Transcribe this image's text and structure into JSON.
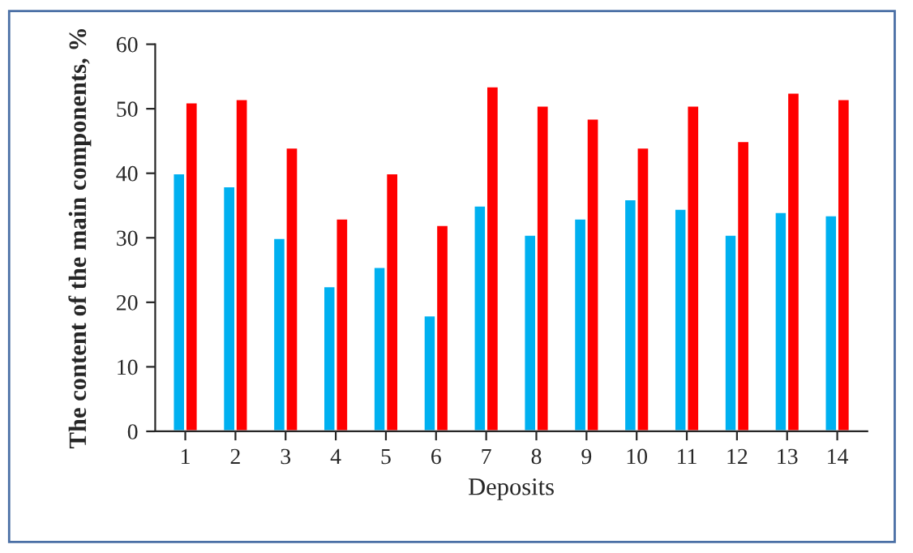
{
  "chart_data": {
    "type": "bar",
    "xlabel": "Deposits",
    "ylabel": "The content of the main components, %",
    "categories": [
      "1",
      "2",
      "3",
      "4",
      "5",
      "6",
      "7",
      "8",
      "9",
      "10",
      "11",
      "12",
      "13",
      "14"
    ],
    "series": [
      {
        "color": "#00b0f0",
        "values": [
          40,
          38,
          30,
          22.5,
          25.5,
          18,
          35,
          30.5,
          33,
          36,
          34.5,
          30.5,
          34,
          33.5
        ]
      },
      {
        "color": "#ff0000",
        "values": [
          51,
          51.5,
          44,
          33,
          40,
          32,
          53.5,
          50.5,
          48.5,
          44,
          50.5,
          45,
          52.5,
          51.5
        ]
      }
    ],
    "ylim": [
      0,
      60
    ],
    "yticks": [
      0,
      10,
      20,
      30,
      40,
      50,
      60
    ],
    "grid": false,
    "legend": false
  }
}
